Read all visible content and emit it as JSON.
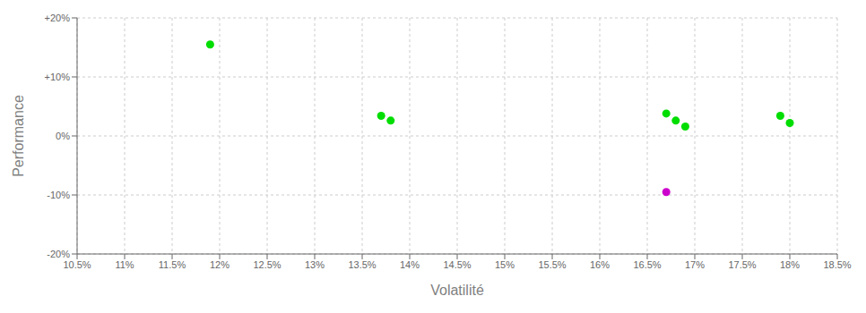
{
  "chart_data": {
    "type": "scatter",
    "xlabel": "Volatilité",
    "ylabel": "Performance",
    "xlim": [
      0.105,
      0.185
    ],
    "ylim": [
      -0.2,
      0.2
    ],
    "xticks": [
      {
        "value": 0.105,
        "label": "10.5%"
      },
      {
        "value": 0.11,
        "label": "11%"
      },
      {
        "value": 0.115,
        "label": "11.5%"
      },
      {
        "value": 0.12,
        "label": "12%"
      },
      {
        "value": 0.125,
        "label": "12.5%"
      },
      {
        "value": 0.13,
        "label": "13%"
      },
      {
        "value": 0.135,
        "label": "13.5%"
      },
      {
        "value": 0.14,
        "label": "14%"
      },
      {
        "value": 0.145,
        "label": "14.5%"
      },
      {
        "value": 0.15,
        "label": "15%"
      },
      {
        "value": 0.155,
        "label": "15.5%"
      },
      {
        "value": 0.16,
        "label": "16%"
      },
      {
        "value": 0.165,
        "label": "16.5%"
      },
      {
        "value": 0.17,
        "label": "17%"
      },
      {
        "value": 0.175,
        "label": "17.5%"
      },
      {
        "value": 0.18,
        "label": "18%"
      },
      {
        "value": 0.185,
        "label": "18.5%"
      }
    ],
    "yticks": [
      {
        "value": -0.2,
        "label": "-20%"
      },
      {
        "value": -0.1,
        "label": "-10%"
      },
      {
        "value": 0.0,
        "label": "0%"
      },
      {
        "value": 0.1,
        "label": "+10%"
      },
      {
        "value": 0.2,
        "label": "+20%"
      }
    ],
    "grid": true,
    "series": [
      {
        "color": "#00dd00",
        "x": [
          0.119,
          0.137,
          0.138,
          0.167,
          0.168,
          0.169,
          0.179,
          0.18
        ],
        "values": [
          0.155,
          0.034,
          0.026,
          0.038,
          0.026,
          0.016,
          0.034,
          0.022
        ]
      },
      {
        "color": "#cc00cc",
        "x": [
          0.167
        ],
        "values": [
          -0.095
        ]
      }
    ]
  }
}
